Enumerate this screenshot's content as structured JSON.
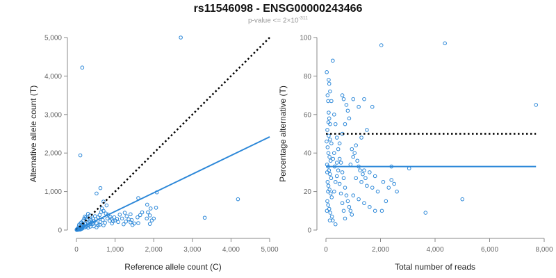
{
  "title": "rs11546098 - ENSG00000243466",
  "subtitle_prefix": "p-value <= 2×10",
  "subtitle_exponent": "-311",
  "colors": {
    "points": "#2b87d8",
    "fit": "#2b87d8",
    "reference": "#000000",
    "axis": "#888888"
  },
  "chart_data": [
    {
      "type": "scatter",
      "xlabel": "Reference allele count (C)",
      "ylabel": "Alternative allele count (T)",
      "xlim": [
        0,
        5000
      ],
      "ylim": [
        0,
        5000
      ],
      "xticks": [
        0,
        1000,
        2000,
        3000,
        4000,
        5000
      ],
      "yticks": [
        0,
        1000,
        2000,
        3000,
        4000,
        5000
      ],
      "xtick_labels": [
        "0",
        "1,000",
        "2,000",
        "3,000",
        "4,000",
        "5,000"
      ],
      "ytick_labels": [
        "0",
        "1,000",
        "2,000",
        "3,000",
        "4,000",
        "5,000"
      ],
      "reference_line": {
        "style": "dotted",
        "x": [
          0,
          5000
        ],
        "y": [
          0,
          5000
        ]
      },
      "fit_line": {
        "style": "solid",
        "x": [
          0,
          5000
        ],
        "y": [
          0,
          2420
        ]
      },
      "points": [
        [
          2700,
          5000
        ],
        [
          150,
          4220
        ],
        [
          100,
          1940
        ],
        [
          4180,
          800
        ],
        [
          3320,
          320
        ],
        [
          2080,
          980
        ],
        [
          1600,
          830
        ],
        [
          620,
          1090
        ],
        [
          520,
          950
        ],
        [
          700,
          740
        ],
        [
          1830,
          660
        ],
        [
          1920,
          560
        ],
        [
          2060,
          580
        ],
        [
          1850,
          460
        ],
        [
          1700,
          460
        ],
        [
          1650,
          390
        ],
        [
          1580,
          330
        ],
        [
          1400,
          410
        ],
        [
          1300,
          360
        ],
        [
          1120,
          400
        ],
        [
          1900,
          380
        ],
        [
          2000,
          300
        ],
        [
          1820,
          300
        ],
        [
          1950,
          250
        ],
        [
          1430,
          260
        ],
        [
          1400,
          200
        ],
        [
          1280,
          220
        ],
        [
          1600,
          180
        ],
        [
          1500,
          170
        ],
        [
          1900,
          160
        ],
        [
          1450,
          130
        ],
        [
          1050,
          290
        ],
        [
          1000,
          250
        ],
        [
          950,
          230
        ],
        [
          900,
          300
        ],
        [
          880,
          340
        ],
        [
          820,
          400
        ],
        [
          760,
          430
        ],
        [
          700,
          500
        ],
        [
          640,
          470
        ],
        [
          600,
          390
        ],
        [
          560,
          330
        ],
        [
          500,
          280
        ],
        [
          480,
          360
        ],
        [
          460,
          230
        ],
        [
          420,
          300
        ],
        [
          400,
          200
        ],
        [
          380,
          260
        ],
        [
          360,
          160
        ],
        [
          340,
          220
        ],
        [
          320,
          130
        ],
        [
          300,
          180
        ],
        [
          280,
          120
        ],
        [
          260,
          90
        ],
        [
          240,
          150
        ],
        [
          220,
          70
        ],
        [
          200,
          110
        ],
        [
          180,
          60
        ],
        [
          160,
          80
        ],
        [
          150,
          40
        ],
        [
          140,
          120
        ],
        [
          130,
          30
        ],
        [
          120,
          70
        ],
        [
          110,
          20
        ],
        [
          100,
          50
        ],
        [
          90,
          10
        ],
        [
          80,
          30
        ],
        [
          70,
          60
        ],
        [
          60,
          15
        ],
        [
          50,
          40
        ],
        [
          45,
          10
        ],
        [
          40,
          25
        ],
        [
          35,
          5
        ],
        [
          30,
          20
        ],
        [
          25,
          8
        ],
        [
          20,
          30
        ],
        [
          15,
          5
        ],
        [
          10,
          15
        ],
        [
          8,
          3
        ],
        [
          5,
          10
        ],
        [
          250,
          330
        ],
        [
          200,
          300
        ],
        [
          350,
          380
        ],
        [
          300,
          420
        ],
        [
          180,
          250
        ],
        [
          130,
          200
        ],
        [
          220,
          350
        ],
        [
          270,
          280
        ],
        [
          420,
          160
        ],
        [
          520,
          180
        ],
        [
          560,
          120
        ],
        [
          620,
          210
        ],
        [
          680,
          260
        ],
        [
          740,
          190
        ],
        [
          800,
          300
        ],
        [
          860,
          240
        ],
        [
          920,
          170
        ],
        [
          980,
          330
        ],
        [
          1080,
          210
        ],
        [
          1180,
          300
        ],
        [
          1220,
          150
        ],
        [
          1350,
          280
        ],
        [
          1250,
          450
        ],
        [
          780,
          640
        ],
        [
          660,
          560
        ],
        [
          300,
          60
        ],
        [
          360,
          90
        ],
        [
          450,
          100
        ],
        [
          520,
          70
        ],
        [
          600,
          140
        ],
        [
          700,
          120
        ],
        [
          110,
          180
        ],
        [
          70,
          140
        ],
        [
          60,
          90
        ],
        [
          170,
          160
        ]
      ]
    },
    {
      "type": "scatter",
      "xlabel": "Total number of reads",
      "ylabel": "Percentage alternative (T)",
      "xlim": [
        0,
        8000
      ],
      "ylim": [
        0,
        100
      ],
      "xticks": [
        0,
        2000,
        4000,
        6000,
        8000
      ],
      "yticks": [
        0,
        20,
        40,
        60,
        80,
        100
      ],
      "xtick_labels": [
        "0",
        "2,000",
        "4,000",
        "6,000",
        "8,000"
      ],
      "ytick_labels": [
        "0",
        "20",
        "40",
        "60",
        "80",
        "100"
      ],
      "reference_line": {
        "style": "dotted",
        "x": [
          0,
          7700
        ],
        "y": [
          50,
          50
        ]
      },
      "fit_line": {
        "style": "solid",
        "x": [
          0,
          7700
        ],
        "y": [
          33,
          33
        ]
      },
      "points": [
        [
          4360,
          97
        ],
        [
          2030,
          96
        ],
        [
          7700,
          65
        ],
        [
          250,
          88
        ],
        [
          100,
          78
        ],
        [
          120,
          76
        ],
        [
          150,
          72
        ],
        [
          200,
          67
        ],
        [
          80,
          67
        ],
        [
          100,
          61
        ],
        [
          120,
          58
        ],
        [
          150,
          55
        ],
        [
          50,
          52
        ],
        [
          100,
          49
        ],
        [
          150,
          47
        ],
        [
          200,
          45
        ],
        [
          60,
          43
        ],
        [
          90,
          40
        ],
        [
          130,
          38
        ],
        [
          170,
          36
        ],
        [
          40,
          34
        ],
        [
          80,
          33
        ],
        [
          110,
          31
        ],
        [
          150,
          29
        ],
        [
          190,
          27
        ],
        [
          60,
          25
        ],
        [
          90,
          23
        ],
        [
          130,
          21
        ],
        [
          170,
          19
        ],
        [
          210,
          17
        ],
        [
          50,
          15
        ],
        [
          80,
          13
        ],
        [
          120,
          11
        ],
        [
          160,
          9
        ],
        [
          220,
          7
        ],
        [
          300,
          60
        ],
        [
          350,
          55
        ],
        [
          400,
          48
        ],
        [
          450,
          42
        ],
        [
          500,
          37
        ],
        [
          550,
          35
        ],
        [
          600,
          30
        ],
        [
          650,
          27
        ],
        [
          700,
          22
        ],
        [
          750,
          18
        ],
        [
          800,
          15
        ],
        [
          850,
          12
        ],
        [
          900,
          10
        ],
        [
          950,
          8
        ],
        [
          300,
          20
        ],
        [
          350,
          25
        ],
        [
          400,
          28
        ],
        [
          450,
          31
        ],
        [
          500,
          24
        ],
        [
          550,
          19
        ],
        [
          600,
          14
        ],
        [
          650,
          10
        ],
        [
          700,
          6
        ],
        [
          300,
          40
        ],
        [
          400,
          35
        ],
        [
          500,
          45
        ],
        [
          600,
          50
        ],
        [
          700,
          55
        ],
        [
          800,
          62
        ],
        [
          1000,
          68
        ],
        [
          1200,
          64
        ],
        [
          1400,
          68
        ],
        [
          1700,
          64
        ],
        [
          1500,
          52
        ],
        [
          1300,
          48
        ],
        [
          1100,
          44
        ],
        [
          1000,
          38
        ],
        [
          900,
          34
        ],
        [
          1200,
          33
        ],
        [
          1400,
          31
        ],
        [
          1600,
          30
        ],
        [
          1800,
          28
        ],
        [
          1100,
          27
        ],
        [
          1300,
          25
        ],
        [
          1500,
          23
        ],
        [
          1700,
          22
        ],
        [
          1900,
          20
        ],
        [
          1000,
          18
        ],
        [
          1200,
          16
        ],
        [
          1400,
          14
        ],
        [
          1600,
          12
        ],
        [
          1800,
          10
        ],
        [
          2100,
          25
        ],
        [
          2300,
          22
        ],
        [
          2400,
          26
        ],
        [
          2500,
          24
        ],
        [
          2600,
          20
        ],
        [
          2200,
          15
        ],
        [
          2050,
          10
        ],
        [
          2400,
          33
        ],
        [
          3050,
          32
        ],
        [
          3650,
          9
        ],
        [
          5000,
          16
        ],
        [
          250,
          5
        ],
        [
          350,
          3
        ],
        [
          600,
          70
        ],
        [
          650,
          68
        ],
        [
          750,
          65
        ],
        [
          850,
          58
        ],
        [
          950,
          42
        ],
        [
          1050,
          40
        ],
        [
          1150,
          36
        ],
        [
          1250,
          31
        ],
        [
          1350,
          29
        ],
        [
          1450,
          27
        ],
        [
          30,
          82
        ],
        [
          60,
          70
        ],
        [
          90,
          56
        ],
        [
          25,
          46
        ],
        [
          45,
          30
        ],
        [
          75,
          20
        ],
        [
          35,
          10
        ],
        [
          140,
          5
        ],
        [
          260,
          37
        ],
        [
          320,
          33
        ]
      ]
    }
  ]
}
